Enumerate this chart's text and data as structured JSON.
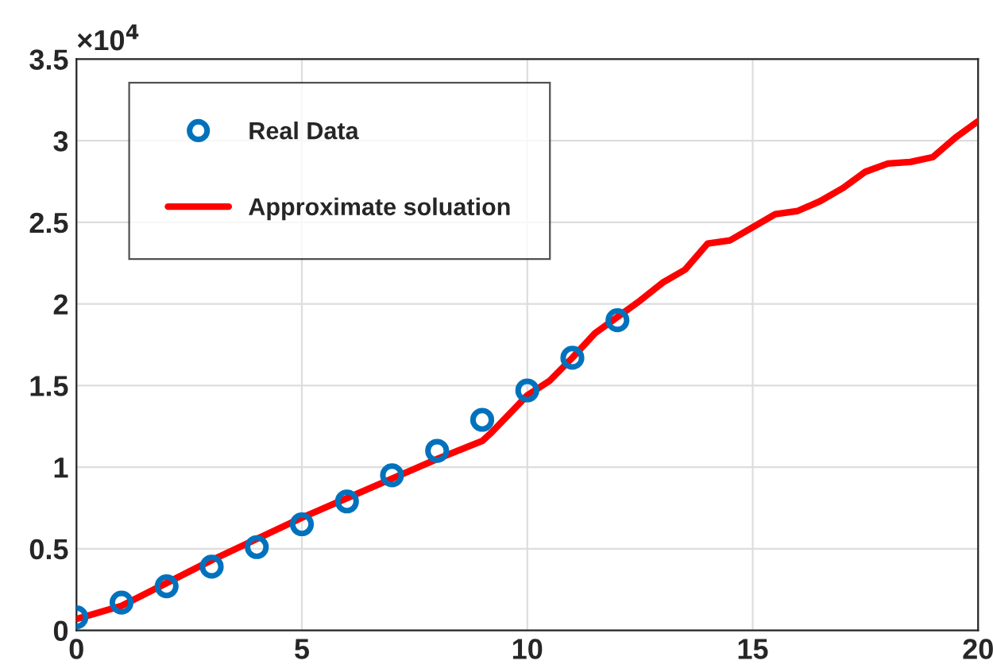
{
  "chart_data": {
    "type": "scatter",
    "series": [
      {
        "name": "Real Data",
        "color": "#0072bd",
        "marker": "circle",
        "x": [
          0,
          1,
          2,
          3,
          4,
          5,
          6,
          7,
          8,
          9,
          10,
          11,
          12
        ],
        "values": [
          0.08,
          0.17,
          0.27,
          0.39,
          0.51,
          0.65,
          0.79,
          0.95,
          1.1,
          1.29,
          1.47,
          1.67,
          1.9
        ]
      },
      {
        "name": "Approximate soluation",
        "type": "line",
        "color": "#ff0000",
        "marker": "none",
        "line_style": "solid",
        "x": [
          0,
          1,
          2,
          3,
          4,
          5,
          6,
          7,
          8,
          9,
          9.2,
          10,
          10.5,
          11,
          11.5,
          12,
          12.5,
          13,
          13.5,
          14,
          14.5,
          15,
          15.5,
          16,
          16.5,
          17,
          17.5,
          18,
          18.5,
          19,
          19.5,
          20
        ],
        "values": [
          0.07,
          0.15,
          0.29,
          0.43,
          0.56,
          0.69,
          0.81,
          0.93,
          1.05,
          1.16,
          1.21,
          1.44,
          1.53,
          1.67,
          1.82,
          1.92,
          2.02,
          2.13,
          2.21,
          2.37,
          2.39,
          2.47,
          2.55,
          2.57,
          2.63,
          2.71,
          2.81,
          2.86,
          2.87,
          2.9,
          3.02,
          3.12
        ]
      }
    ],
    "xlim": [
      0,
      20
    ],
    "xticks": [
      0,
      5,
      10,
      15,
      20
    ],
    "ylim": [
      0,
      3.5
    ],
    "yticks": [
      0,
      0.5,
      1,
      1.5,
      2,
      2.5,
      3,
      3.5
    ],
    "annotations": [
      "×10$^{4}$"
    ],
    "grid": true,
    "legend": "top left"
  }
}
